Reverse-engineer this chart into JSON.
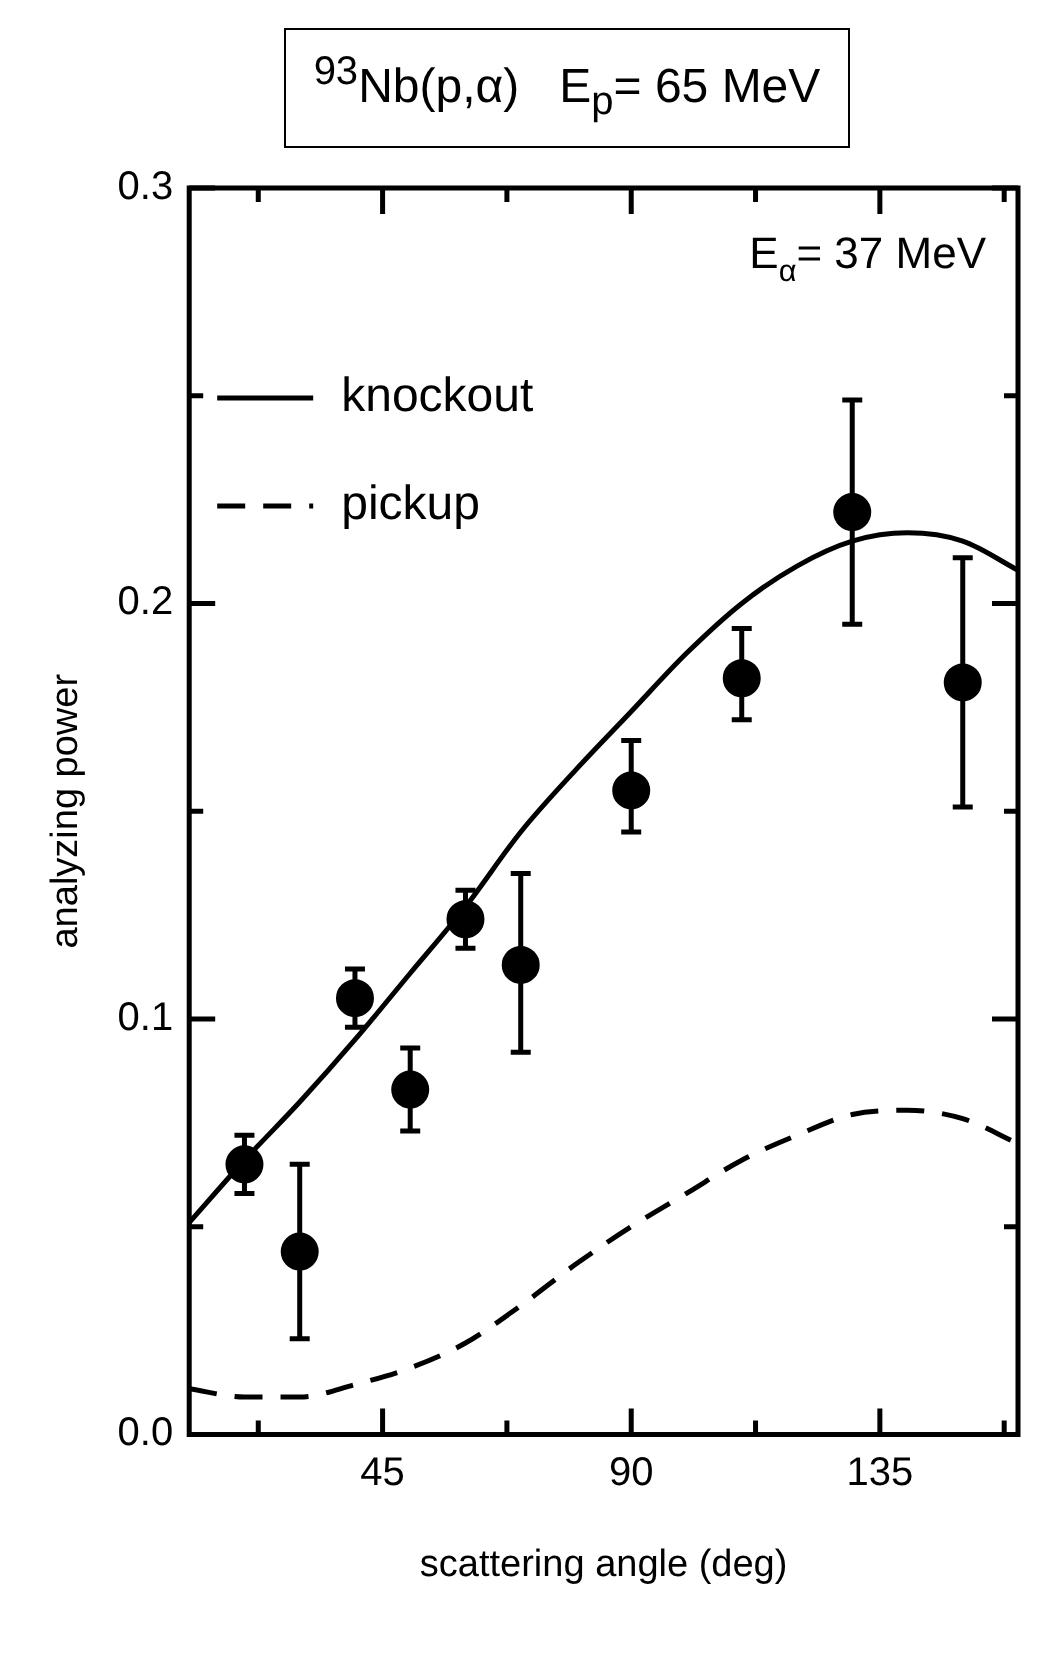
{
  "chart_data": {
    "type": "scatter",
    "title": "$^{93}$Nb(p,α)   E$_{p}$= 65 MeV",
    "xlabel": "scattering angle (deg)",
    "ylabel": "analyzing power",
    "annotations": [
      "E$_{α}$= 37 MeV"
    ],
    "xlim": [
      10,
      160
    ],
    "ylim": [
      0,
      0.3
    ],
    "xticks": [
      {
        "value": 22.5,
        "label": null
      },
      45,
      {
        "value": 67.5,
        "label": null
      },
      90,
      {
        "value": 112.5,
        "label": null
      },
      135,
      {
        "value": 157.5,
        "label": null
      }
    ],
    "yticks": [
      {
        "value": 0,
        "label": "0.0"
      },
      {
        "value": 0.05,
        "label": null
      },
      0.1,
      {
        "value": 0.15,
        "label": null
      },
      0.2,
      {
        "value": 0.25,
        "label": null
      },
      0.3
    ],
    "grid": false,
    "legend": "top left",
    "series": [
      {
        "color": "#000000",
        "marker": "circle",
        "x": [
          20,
          30,
          40,
          50,
          60,
          70,
          90,
          110,
          130,
          150
        ],
        "values": [
          0.065,
          0.044,
          0.105,
          0.083,
          0.124,
          0.113,
          0.155,
          0.182,
          0.222,
          0.181
        ],
        "errors": [
          [
            0.058,
            0.072
          ],
          [
            0.023,
            0.065
          ],
          [
            0.098,
            0.112
          ],
          [
            0.073,
            0.093
          ],
          [
            0.117,
            0.131
          ],
          [
            0.092,
            0.135
          ],
          [
            0.145,
            0.167
          ],
          [
            0.172,
            0.194
          ],
          [
            0.195,
            0.249
          ],
          [
            0.151,
            0.211
          ]
        ]
      },
      {
        "type": "line",
        "name": "knockout",
        "color": "#000000",
        "line_style": "solid",
        "x": [
          10,
          20,
          30,
          40,
          50,
          60,
          70,
          80,
          90,
          100,
          110,
          120,
          130,
          140,
          150,
          160
        ],
        "values": [
          0.051,
          0.066,
          0.08,
          0.095,
          0.111,
          0.127,
          0.145,
          0.16,
          0.174,
          0.188,
          0.2,
          0.209,
          0.215,
          0.217,
          0.215,
          0.208
        ]
      },
      {
        "type": "line",
        "name": "pickup",
        "color": "#000000",
        "line_style": "dashed",
        "x": [
          10,
          20,
          30,
          40,
          50,
          60,
          70,
          80,
          90,
          100,
          110,
          120,
          130,
          140,
          150,
          160
        ],
        "values": [
          0.011,
          0.009,
          0.009,
          0.012,
          0.016,
          0.022,
          0.031,
          0.041,
          0.05,
          0.058,
          0.066,
          0.072,
          0.077,
          0.078,
          0.076,
          0.07
        ]
      }
    ]
  }
}
